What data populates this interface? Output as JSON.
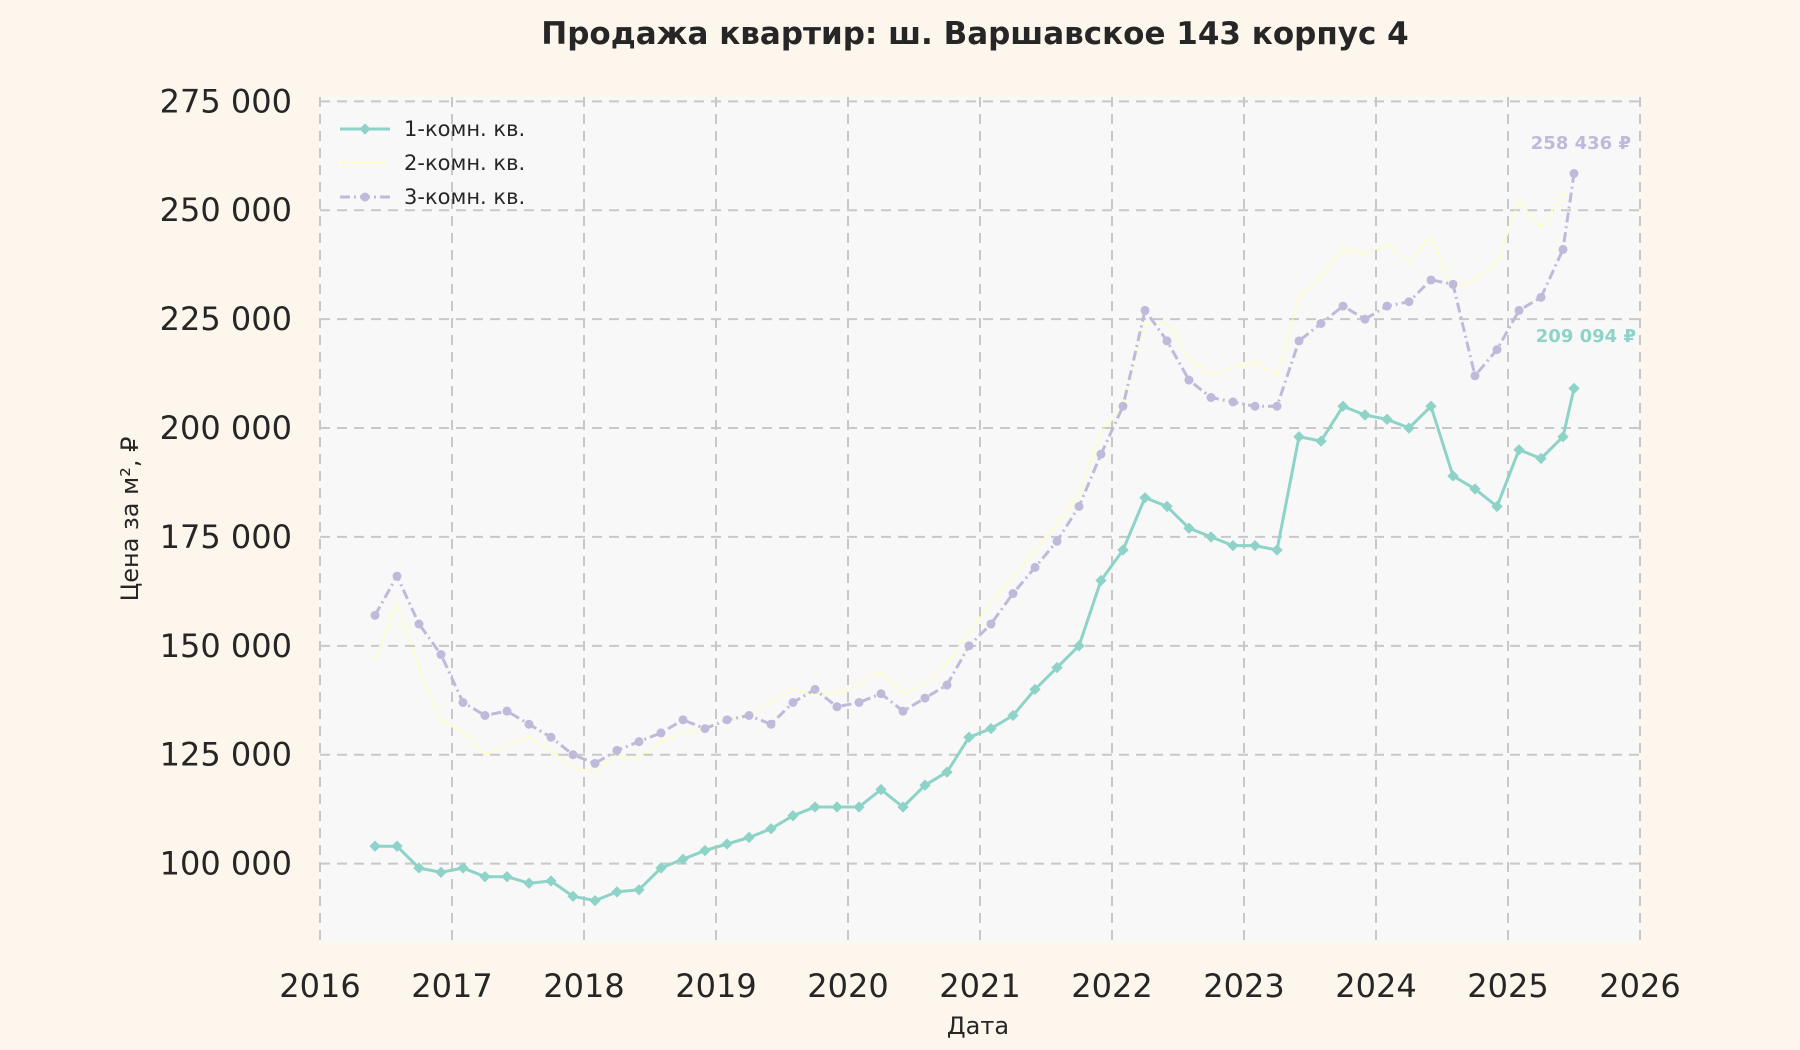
{
  "chart_data": {
    "type": "line",
    "title": "Продажа квартир: ш. Варшавское 143 корпус 4",
    "xlabel": "Дата",
    "ylabel": "Цена за м², ₽",
    "x_tick_labels": [
      "2016",
      "2017",
      "2018",
      "2019",
      "2020",
      "2021",
      "2022",
      "2023",
      "2024",
      "2025",
      "2026"
    ],
    "y_tick_labels": [
      "100 000",
      "125 000",
      "150 000",
      "175 000",
      "200 000",
      "225 000",
      "250 000",
      "275 000"
    ],
    "xlim": [
      "2016-01-01",
      "2026-01-01"
    ],
    "ylim": [
      82000,
      276000
    ],
    "grid": true,
    "legend_position": "top-left",
    "end_labels": {
      "s1": "209 094 ₽",
      "s3": "258 436 ₽"
    },
    "series": [
      {
        "name": "1-комн. кв.",
        "color": "#8dd3c7",
        "marker": "diamond",
        "x": [
          "2016-06",
          "2016-08",
          "2016-10",
          "2016-12",
          "2017-02",
          "2017-04",
          "2017-06",
          "2017-08",
          "2017-10",
          "2017-12",
          "2018-02",
          "2018-04",
          "2018-06",
          "2018-08",
          "2018-10",
          "2018-12",
          "2019-02",
          "2019-04",
          "2019-06",
          "2019-08",
          "2019-10",
          "2019-12",
          "2020-02",
          "2020-04",
          "2020-06",
          "2020-08",
          "2020-10",
          "2020-12",
          "2021-02",
          "2021-04",
          "2021-06",
          "2021-08",
          "2021-10",
          "2021-12",
          "2022-02",
          "2022-04",
          "2022-06",
          "2022-08",
          "2022-10",
          "2022-12",
          "2023-02",
          "2023-04",
          "2023-06",
          "2023-08",
          "2023-10",
          "2023-12",
          "2024-02",
          "2024-04",
          "2024-06",
          "2024-08",
          "2024-10",
          "2024-12",
          "2025-02",
          "2025-04",
          "2025-06",
          "2025-07"
        ],
        "values": [
          104000,
          104000,
          99000,
          98000,
          99000,
          97000,
          97000,
          95500,
          96000,
          92500,
          91500,
          93500,
          94000,
          99000,
          101000,
          103000,
          104500,
          106000,
          108000,
          111000,
          113000,
          113000,
          113000,
          117000,
          113000,
          118000,
          121000,
          129000,
          131000,
          134000,
          140000,
          145000,
          150000,
          165000,
          172000,
          184000,
          182000,
          177000,
          175000,
          173000,
          173000,
          172000,
          198000,
          197000,
          205000,
          203000,
          202000,
          200000,
          205000,
          189000,
          186000,
          182000,
          195000,
          193000,
          198000,
          209094
        ]
      },
      {
        "name": "2-комн. кв.",
        "color": "#ffffb3",
        "marker": "none",
        "x": [
          "2016-06",
          "2016-08",
          "2016-10",
          "2016-12",
          "2017-02",
          "2017-04",
          "2017-06",
          "2017-08",
          "2017-10",
          "2017-12",
          "2018-02",
          "2018-04",
          "2018-06",
          "2018-08",
          "2018-10",
          "2018-12",
          "2019-02",
          "2019-04",
          "2019-06",
          "2019-08",
          "2019-10",
          "2019-12",
          "2020-02",
          "2020-04",
          "2020-06",
          "2020-08",
          "2020-10",
          "2020-12",
          "2021-02",
          "2021-04",
          "2021-06",
          "2021-08",
          "2021-10",
          "2021-12",
          "2022-02",
          "2022-04",
          "2022-06",
          "2022-08",
          "2022-10",
          "2022-12",
          "2023-02",
          "2023-04",
          "2023-06",
          "2023-08",
          "2023-10",
          "2023-12",
          "2024-02",
          "2024-04",
          "2024-06",
          "2024-08",
          "2024-10",
          "2024-12",
          "2025-02",
          "2025-04",
          "2025-06",
          "2025-07"
        ],
        "values": [
          147000,
          160000,
          145000,
          133000,
          130000,
          125000,
          127000,
          129000,
          126000,
          122000,
          121000,
          125000,
          124000,
          128000,
          130000,
          131000,
          133000,
          134000,
          137000,
          140000,
          139000,
          139000,
          141000,
          144000,
          139000,
          141000,
          146000,
          153000,
          160000,
          166000,
          172000,
          178000,
          185000,
          199000,
          205000,
          224000,
          224000,
          216000,
          212000,
          214000,
          215000,
          212000,
          230000,
          235000,
          241000,
          240000,
          242000,
          238000,
          244000,
          232000,
          234000,
          238000,
          252000,
          246000,
          254000,
          252000
        ]
      },
      {
        "name": "3-комн. кв.",
        "color": "#bebada",
        "marker": "circle",
        "x": [
          "2016-06",
          "2016-08",
          "2016-10",
          "2016-12",
          "2017-02",
          "2017-04",
          "2017-06",
          "2017-08",
          "2017-10",
          "2017-12",
          "2018-02",
          "2018-04",
          "2018-06",
          "2018-08",
          "2018-10",
          "2018-12",
          "2019-02",
          "2019-04",
          "2019-06",
          "2019-08",
          "2019-10",
          "2019-12",
          "2020-02",
          "2020-04",
          "2020-06",
          "2020-08",
          "2020-10",
          "2020-12",
          "2021-02",
          "2021-04",
          "2021-06",
          "2021-08",
          "2021-10",
          "2021-12",
          "2022-02",
          "2022-04",
          "2022-06",
          "2022-08",
          "2022-10",
          "2022-12",
          "2023-02",
          "2023-04",
          "2023-06",
          "2023-08",
          "2023-10",
          "2023-12",
          "2024-02",
          "2024-04",
          "2024-06",
          "2024-08",
          "2024-10",
          "2024-12",
          "2025-02",
          "2025-04",
          "2025-06",
          "2025-07"
        ],
        "values": [
          157000,
          166000,
          155000,
          148000,
          137000,
          134000,
          135000,
          132000,
          129000,
          125000,
          123000,
          126000,
          128000,
          130000,
          133000,
          131000,
          133000,
          134000,
          132000,
          137000,
          140000,
          136000,
          137000,
          139000,
          135000,
          138000,
          141000,
          150000,
          155000,
          162000,
          168000,
          174000,
          182000,
          194000,
          205000,
          227000,
          220000,
          211000,
          207000,
          206000,
          205000,
          205000,
          220000,
          224000,
          228000,
          225000,
          228000,
          229000,
          234000,
          233000,
          212000,
          218000,
          227000,
          230000,
          241000,
          258436
        ]
      }
    ]
  }
}
